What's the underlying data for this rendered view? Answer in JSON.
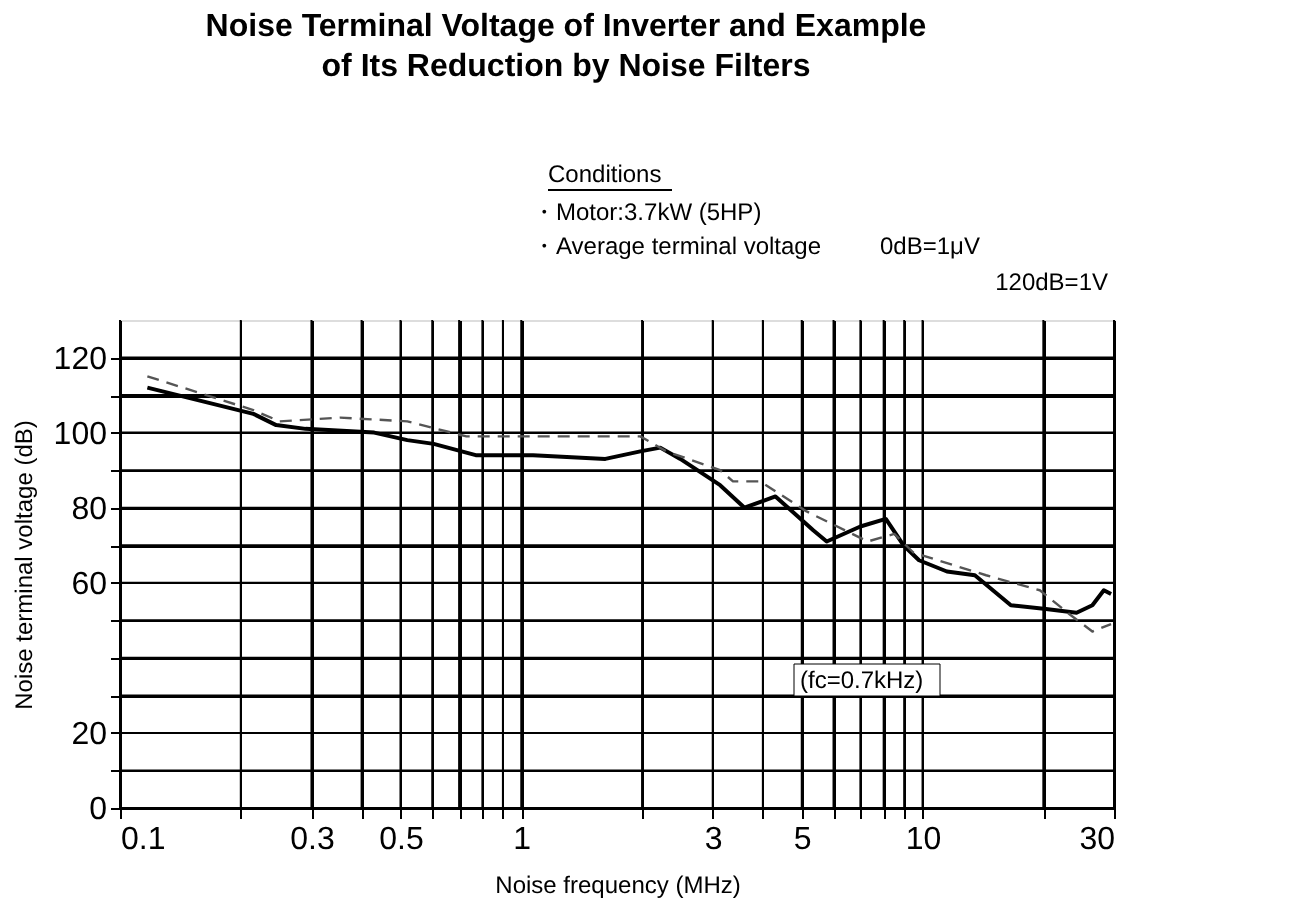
{
  "chart_data": {
    "type": "line",
    "title": "Noise Terminal Voltage of Inverter and Example\nof Its Reduction by Noise Filters",
    "xlabel": "Noise frequency (MHz)",
    "ylabel": "Noise terminal voltage (dB)",
    "log": "x",
    "xlim": [
      0.1,
      30
    ],
    "ylim": [
      0,
      130
    ],
    "xticks": [
      0.1,
      {
        "value": 0.2,
        "label": null
      },
      0.3,
      {
        "value": 0.4,
        "label": null
      },
      0.5,
      {
        "value": 0.6,
        "label": null
      },
      {
        "value": 0.7,
        "label": null
      },
      {
        "value": 0.8,
        "label": null
      },
      {
        "value": 0.9,
        "label": null
      },
      1,
      {
        "value": 2,
        "label": null
      },
      3,
      {
        "value": 4,
        "label": null
      },
      5,
      {
        "value": 6,
        "label": null
      },
      {
        "value": 7,
        "label": null
      },
      {
        "value": 8,
        "label": null
      },
      {
        "value": 9,
        "label": null
      },
      10,
      {
        "value": 20,
        "label": null
      },
      30
    ],
    "yticks": [
      0,
      {
        "value": 10,
        "label": null
      },
      20,
      {
        "value": 30,
        "label": null
      },
      {
        "value": 40,
        "label": null
      },
      {
        "value": 50,
        "label": null
      },
      60,
      {
        "value": 70,
        "label": null
      },
      80,
      {
        "value": 90,
        "label": null
      },
      100,
      {
        "value": 110,
        "label": null
      },
      120
    ],
    "grid": true,
    "legend": false,
    "series": [
      {
        "color": "#000000",
        "line_style": "solid",
        "x": [
          0.117,
          0.215,
          0.245,
          0.29,
          0.43,
          0.52,
          0.605,
          0.77,
          1.07,
          1.62,
          1.98,
          2.22,
          2.49,
          3.13,
          3.6,
          4.3,
          5.34,
          5.77,
          7.0,
          8.1,
          8.96,
          9.8,
          11.5,
          13.5,
          16.6,
          20.3,
          24.2,
          26.5,
          28.3,
          29.5
        ],
        "values": [
          112,
          105,
          102,
          101,
          100,
          98,
          97,
          94,
          94,
          93,
          95,
          96,
          93,
          86,
          80,
          83,
          74,
          71,
          75,
          77,
          70,
          66,
          63,
          62,
          54,
          53,
          52,
          54,
          58,
          57
        ]
      },
      {
        "color": "#555555",
        "line_style": "dashed",
        "x": [
          0.117,
          0.215,
          0.25,
          0.354,
          0.52,
          0.73,
          0.92,
          1.98,
          2.3,
          3.13,
          3.37,
          3.94,
          5.14,
          7.3,
          8.5,
          9.5,
          14.4,
          19.6,
          23.0,
          26.5,
          29.5
        ],
        "values": [
          115,
          106,
          103,
          104,
          103,
          99,
          99,
          99,
          95,
          90,
          87,
          87,
          79,
          71,
          73,
          68,
          62,
          58,
          52,
          47,
          49
        ]
      }
    ],
    "annotations": [
      "Conditions",
      "・Motor:3.7kW (5HP)",
      "・Average terminal voltage",
      "0dB=1μV",
      "120dB=1V",
      "(fc=0.7kHz)"
    ]
  }
}
